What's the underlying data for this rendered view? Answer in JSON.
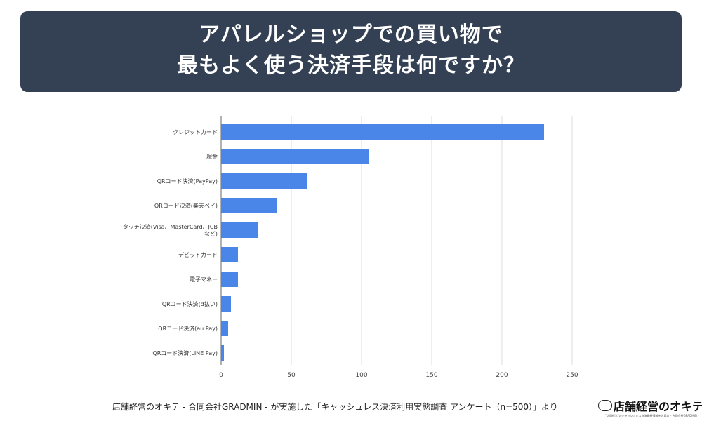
{
  "title": {
    "line1": "アパレルショップでの買い物で",
    "line2": "最もよく使う決済手段は何ですか？"
  },
  "chart_data": {
    "type": "bar",
    "orientation": "horizontal",
    "title": "アパレルショップでの買い物で最もよく使う決済手段は何ですか？",
    "categories": [
      "クレジットカード",
      "現金",
      "QRコード決済(PayPay)",
      "QRコード決済(楽天ペイ)",
      "タッチ決済(Visa、MasterCard、JCBなど)",
      "デビットカード",
      "電子マネー",
      "QRコード決済(d払い)",
      "QRコード決済(au Pay)",
      "QRコード決済(LINE Pay)"
    ],
    "values": [
      230,
      105,
      61,
      40,
      26,
      12,
      12,
      7,
      5,
      2
    ],
    "xlim": [
      0,
      250
    ],
    "xticks": [
      "0",
      "50",
      "100",
      "150",
      "200",
      "250"
    ],
    "grid": true,
    "bar_color": "#4a86e8"
  },
  "source": "店舗経営のオキテ - 合同会社GRADMIN - が実施した「キャッシュレス決済利用実態調査 アンケート（n=500）」より",
  "logo": {
    "text": "店舗経営のオキテ",
    "sub": "\"店舗経営\"のキャッシュレス決済最新情報をお届け - 合同会社GRADMIN -"
  }
}
